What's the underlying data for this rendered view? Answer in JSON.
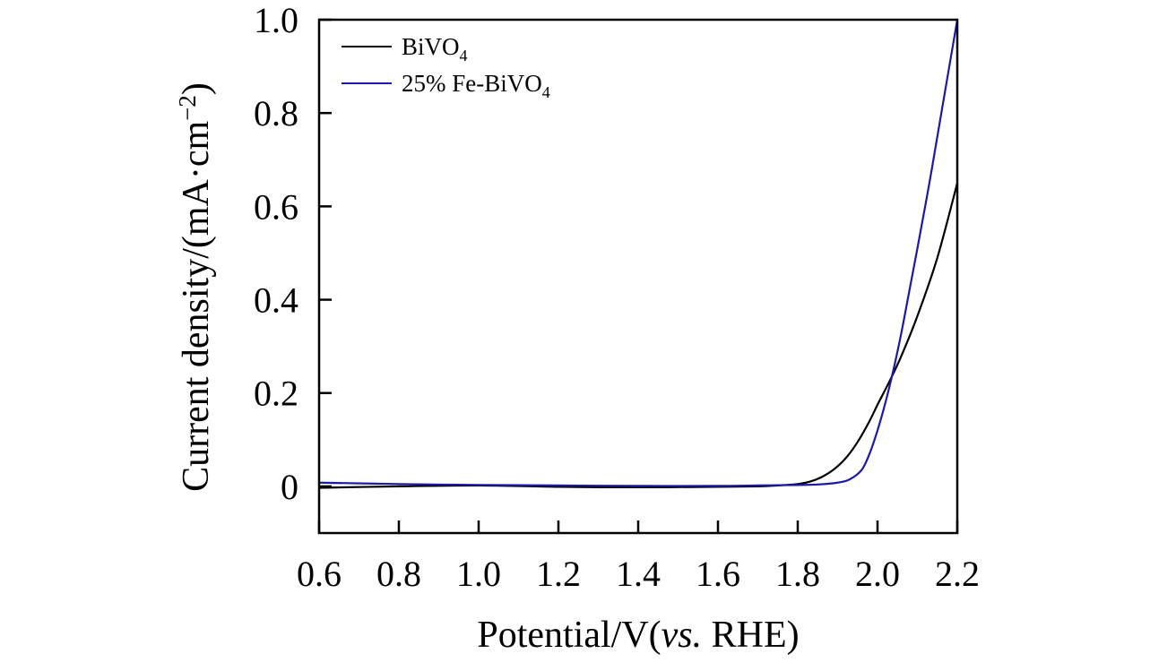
{
  "chart_data": {
    "type": "line",
    "title": "",
    "xlabel": {
      "pre": "Potential/V(",
      "italic": "vs.",
      "post": " RHE)"
    },
    "ylabel": {
      "main": "Current density/(mA·cm",
      "sup": "−2",
      "close": ")"
    },
    "xlim": [
      0.6,
      2.2
    ],
    "ylim": [
      -0.1,
      1.0
    ],
    "xticks": [
      0.6,
      0.8,
      1.0,
      1.2,
      1.4,
      1.6,
      1.8,
      2.0,
      2.2
    ],
    "xtick_labels": [
      "0.6",
      "0.8",
      "1.0",
      "1.2",
      "1.4",
      "1.6",
      "1.8",
      "2.0",
      "2.2"
    ],
    "yticks": [
      0,
      0.2,
      0.4,
      0.6,
      0.8,
      1.0
    ],
    "ytick_labels": [
      "0",
      "0.2",
      "0.4",
      "0.6",
      "0.8",
      "1.0"
    ],
    "legend_position": "top-left",
    "series": [
      {
        "name": "BiVO4",
        "label": {
          "text": "BiVO",
          "sub": "4"
        },
        "color": "#000000",
        "x": [
          0.6,
          0.8,
          1.0,
          1.2,
          1.4,
          1.6,
          1.7,
          1.75,
          1.8,
          1.83,
          1.86,
          1.89,
          1.92,
          1.95,
          1.98,
          2.0,
          2.03,
          2.06,
          2.1,
          2.15,
          2.2
        ],
        "y": [
          -0.003,
          0.0,
          0.002,
          -0.001,
          -0.002,
          -0.001,
          0.0,
          0.002,
          0.005,
          0.01,
          0.02,
          0.036,
          0.06,
          0.095,
          0.14,
          0.175,
          0.225,
          0.28,
          0.365,
          0.49,
          0.65
        ]
      },
      {
        "name": "25% Fe-BiVO4",
        "label": {
          "text": "25% Fe-BiVO",
          "sub": "4"
        },
        "color": "#1a1aaa",
        "x": [
          0.6,
          0.8,
          1.0,
          1.2,
          1.4,
          1.6,
          1.7,
          1.8,
          1.85,
          1.9,
          1.93,
          1.96,
          1.98,
          2.0,
          2.02,
          2.04,
          2.06,
          2.08,
          2.1,
          2.13,
          2.16,
          2.2
        ],
        "y": [
          0.008,
          0.005,
          0.003,
          0.002,
          0.001,
          0.001,
          0.002,
          0.003,
          0.004,
          0.008,
          0.015,
          0.035,
          0.07,
          0.12,
          0.18,
          0.25,
          0.33,
          0.42,
          0.51,
          0.65,
          0.8,
          1.0
        ]
      }
    ]
  }
}
